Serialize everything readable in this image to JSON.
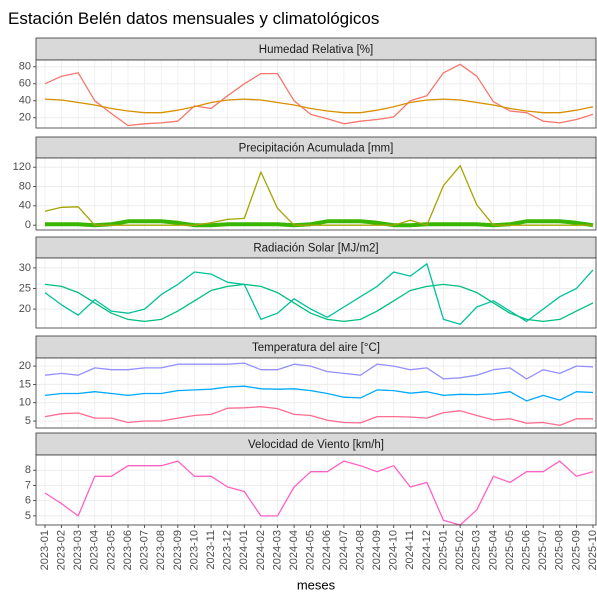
{
  "chart_data": {
    "type": "line",
    "title": "Estación Belén datos mensuales y climatológicos",
    "x_label": "meses",
    "categories": [
      "2023-01",
      "2023-02",
      "2023-03",
      "2023-04",
      "2023-05",
      "2023-06",
      "2023-07",
      "2023-08",
      "2023-09",
      "2023-10",
      "2023-11",
      "2023-12",
      "2024-01",
      "2024-02",
      "2024-03",
      "2024-04",
      "2024-05",
      "2024-06",
      "2024-07",
      "2024-08",
      "2024-09",
      "2024-10",
      "2024-11",
      "2024-12",
      "2025-01",
      "2025-02",
      "2025-03",
      "2025-04",
      "2025-05",
      "2025-06",
      "2025-07",
      "2025-08",
      "2025-09",
      "2025-10"
    ],
    "grid": true,
    "panels": [
      {
        "title": "Humedad Relativa [%]",
        "ylim": [
          8,
          88
        ],
        "yticks": [
          20,
          40,
          60,
          80
        ],
        "series": [
          {
            "color": "#F8766D",
            "width": 1.3,
            "values": [
              60,
              69,
              73,
              40,
              25,
              11,
              13,
              14,
              16,
              34,
              31,
              46,
              60,
              72,
              72,
              40,
              24,
              19,
              13,
              16,
              18,
              21,
              40,
              46,
              73,
              83,
              69,
              39,
              28,
              26,
              16,
              14,
              18,
              24
            ]
          },
          {
            "color": "#D89000",
            "width": 1.3,
            "values": [
              42,
              41,
              38,
              35,
              31,
              28,
              26,
              26,
              29,
              33,
              38,
              41,
              42,
              41,
              38,
              35,
              31,
              28,
              26,
              26,
              29,
              33,
              38,
              41,
              42,
              41,
              38,
              35,
              31,
              28,
              26,
              26,
              29,
              33
            ]
          }
        ]
      },
      {
        "title": "Precipitación Acumulada [mm]",
        "ylim": [
          -10,
          139
        ],
        "yticks": [
          0,
          40,
          80,
          120
        ],
        "series": [
          {
            "color": "#39B600",
            "width": 4,
            "values": [
              2,
              2,
              2,
              0,
              2,
              8,
              8,
              8,
              5,
              0,
              0,
              2,
              2,
              2,
              2,
              0,
              2,
              8,
              8,
              8,
              5,
              0,
              0,
              2,
              2,
              2,
              2,
              0,
              2,
              8,
              8,
              8,
              5,
              0
            ]
          },
          {
            "color": "#A3A500",
            "width": 1.3,
            "values": [
              29,
              37,
              38,
              0,
              0,
              0,
              0,
              0,
              0,
              0,
              5,
              12,
              14,
              110,
              35,
              0,
              0,
              0,
              0,
              0,
              0,
              0,
              10,
              0,
              82,
              123,
              42,
              0,
              0,
              0,
              0,
              0,
              0,
              0
            ]
          }
        ]
      },
      {
        "title": "Radiación Solar [MJ/m2]",
        "ylim": [
          15.4,
          32.4
        ],
        "yticks": [
          20,
          25,
          30
        ],
        "series": [
          {
            "color": "#00BF7D",
            "width": 1.3,
            "values": [
              26,
              25.5,
              24,
              21.5,
              19,
              17.5,
              17,
              17.5,
              19.5,
              22,
              24.5,
              25.5,
              26,
              25.5,
              24,
              21.5,
              19,
              17.5,
              17,
              17.5,
              19.5,
              22,
              24.5,
              25.5,
              26,
              25.5,
              24,
              21.5,
              19,
              17.5,
              17,
              17.5,
              19.5,
              21.5
            ]
          },
          {
            "color": "#00C19A",
            "width": 1.3,
            "values": [
              24,
              21,
              18.5,
              22.3,
              19.5,
              19,
              20,
              23.5,
              26,
              29,
              28.5,
              26.5,
              26,
              17.5,
              19,
              22.5,
              20,
              18,
              20.5,
              23,
              25.5,
              29,
              28,
              31,
              17.5,
              16.3,
              20.5,
              22,
              19.5,
              17,
              20,
              23,
              25,
              29.5
            ]
          }
        ]
      },
      {
        "title": "Temperatura del aire [°C]",
        "ylim": [
          3.1,
          22.2
        ],
        "yticks": [
          5,
          10,
          15,
          20
        ],
        "series": [
          {
            "color": "#9590FF",
            "width": 1.3,
            "values": [
              17.5,
              18,
              17.5,
              19.5,
              19,
              19,
              19.5,
              19.5,
              20.5,
              20.5,
              20.5,
              20.5,
              20.8,
              19,
              19,
              20.5,
              20,
              18.5,
              18,
              17.5,
              20.5,
              20,
              19,
              19.5,
              16.5,
              16.8,
              17.5,
              19,
              19.5,
              16.5,
              19,
              18,
              20,
              19.8
            ]
          },
          {
            "color": "#00A9FF",
            "width": 1.3,
            "values": [
              12,
              12.5,
              12.5,
              13,
              12.5,
              12,
              12.5,
              12.5,
              13.3,
              13.5,
              13.7,
              14.3,
              14.5,
              13.8,
              13.7,
              13.8,
              13.3,
              12.5,
              11.5,
              11.3,
              13.5,
              13.3,
              12.6,
              13,
              12,
              12.3,
              12.2,
              12.4,
              13,
              10.5,
              12,
              10.7,
              13,
              12.8
            ]
          },
          {
            "color": "#FF6C91",
            "width": 1.3,
            "values": [
              6.2,
              7,
              7.2,
              5.8,
              5.8,
              4.6,
              5,
              5,
              5.8,
              6.5,
              6.8,
              8.5,
              8.6,
              8.9,
              8.4,
              6.8,
              6.5,
              5.2,
              4.6,
              4.5,
              6.2,
              6.2,
              6.1,
              5.8,
              7.3,
              7.8,
              6.5,
              5.3,
              5.6,
              4.4,
              4.6,
              3.8,
              5.6,
              5.6
            ]
          }
        ]
      },
      {
        "title": "Velocidad de Viento [km/h]",
        "ylim": [
          4.4,
          9.0
        ],
        "yticks": [
          5,
          6,
          7,
          8
        ],
        "series": [
          {
            "color": "#FF61C3",
            "width": 1.3,
            "values": [
              6.5,
              5.8,
              5.0,
              7.6,
              7.6,
              8.3,
              8.3,
              8.3,
              8.6,
              7.6,
              7.6,
              6.9,
              6.6,
              5.0,
              5.0,
              6.9,
              7.9,
              7.9,
              8.6,
              8.3,
              7.9,
              8.3,
              6.9,
              7.2,
              4.7,
              4.4,
              5.4,
              7.6,
              7.2,
              7.9,
              7.9,
              8.6,
              7.6,
              7.9
            ]
          }
        ]
      }
    ]
  }
}
